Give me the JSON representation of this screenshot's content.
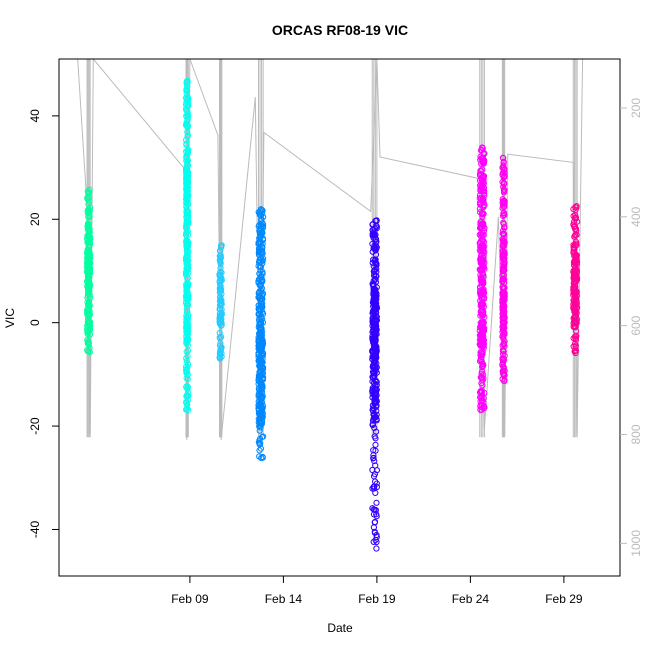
{
  "chart_data": {
    "type": "scatter",
    "title": "ORCAS RF08-19 VIC",
    "xlabel": "Date",
    "ylabel": "VIC",
    "xlim": [
      "2016-02-02",
      "2016-03-03"
    ],
    "ylim": [
      -49,
      51
    ],
    "y_ticks": [
      -40,
      -20,
      0,
      20,
      40
    ],
    "x_ticks": [
      {
        "date": "2016-02-09",
        "label": "Feb 09"
      },
      {
        "date": "2016-02-14",
        "label": "Feb 14"
      },
      {
        "date": "2016-02-19",
        "label": "Feb 19"
      },
      {
        "date": "2016-02-24",
        "label": "Feb 24"
      },
      {
        "date": "2016-02-29",
        "label": "Feb 29"
      }
    ],
    "y2_ticks": [
      200,
      400,
      600,
      800,
      1000
    ],
    "y2lim": [
      110,
      1060
    ],
    "grid": false,
    "series": [
      {
        "color": "#00ff9f",
        "x": [
          "2016-02-03T12:00",
          "2016-02-03T16:00"
        ],
        "y_min": -6,
        "y_max": 26,
        "density": [
          [
            -6,
            -2,
            0.6
          ],
          [
            -2,
            6,
            1
          ],
          [
            6,
            18,
            1.6
          ],
          [
            18,
            26,
            0.8
          ]
        ]
      },
      {
        "color": "#00ffee",
        "x": [
          "2016-02-08T19:00",
          "2016-02-08T22:00"
        ],
        "y_min": -17,
        "y_max": 47,
        "density": [
          [
            -17,
            -5,
            0.5
          ],
          [
            -5,
            10,
            0.9
          ],
          [
            10,
            30,
            1.2
          ],
          [
            30,
            47,
            0.7
          ]
        ]
      },
      {
        "color": "#22ccff",
        "x": [
          "2016-02-10T14:00",
          "2016-02-10T17:00"
        ],
        "y_min": -7,
        "y_max": 15,
        "density": [
          [
            -7,
            0,
            0.6
          ],
          [
            0,
            10,
            1
          ],
          [
            10,
            15,
            0.5
          ]
        ]
      },
      {
        "color": "#0088ff",
        "x": [
          "2016-02-12T16:00",
          "2016-02-12T22:00"
        ],
        "y_min": -27,
        "y_max": 22,
        "density": [
          [
            -27,
            -20,
            0.4
          ],
          [
            -20,
            -5,
            1.6
          ],
          [
            -5,
            5,
            1.5
          ],
          [
            5,
            22,
            1
          ]
        ]
      },
      {
        "color": "#3300ff",
        "x": [
          "2016-02-18T18:00",
          "2016-02-19T00:00"
        ],
        "y_min": -44,
        "y_max": 20,
        "density": [
          [
            -44,
            -20,
            0.3
          ],
          [
            -20,
            -8,
            1.2
          ],
          [
            -8,
            8,
            1.8
          ],
          [
            8,
            20,
            0.8
          ]
        ]
      },
      {
        "color": "#ff00ff",
        "x": [
          "2016-02-24T12:00",
          "2016-02-24T18:00"
        ],
        "y_min": -17,
        "y_max": 34,
        "density": [
          [
            -17,
            -5,
            0.7
          ],
          [
            -5,
            15,
            1.4
          ],
          [
            15,
            34,
            1
          ]
        ]
      },
      {
        "color": "#ff00ee",
        "x": [
          "2016-02-25T17:00",
          "2016-02-25T20:00"
        ],
        "y_min": -12,
        "y_max": 33,
        "density": [
          [
            -12,
            0,
            0.7
          ],
          [
            0,
            15,
            1.2
          ],
          [
            15,
            33,
            0.6
          ]
        ]
      },
      {
        "color": "#ff0099",
        "x": [
          "2016-02-29T12:00",
          "2016-02-29T17:00"
        ],
        "y_min": -6,
        "y_max": 23,
        "density": [
          [
            -6,
            0,
            0.7
          ],
          [
            0,
            15,
            1.4
          ],
          [
            15,
            23,
            0.6
          ]
        ]
      }
    ],
    "pressure_track": {
      "color": "#bbbbbb",
      "y2_points": [
        [
          "2016-02-03T00:00",
          110
        ],
        [
          "2016-02-03T12:00",
          380
        ],
        [
          "2016-02-03T16:00",
          800
        ],
        [
          "2016-02-03T20:00",
          110
        ],
        [
          "2016-02-08T16:00",
          310
        ],
        [
          "2016-02-08T20:00",
          810
        ],
        [
          "2016-02-09T00:00",
          110
        ],
        [
          "2016-02-10T12:00",
          250
        ],
        [
          "2016-02-10T16:00",
          810
        ],
        [
          "2016-02-12T12:00",
          180
        ],
        [
          "2016-02-12T18:00",
          790
        ],
        [
          "2016-02-12T23:00",
          245
        ],
        [
          "2016-02-18T16:00",
          390
        ],
        [
          "2016-02-19T00:00",
          110
        ],
        [
          "2016-02-19T04:00",
          290
        ],
        [
          "2016-02-24T12:00",
          330
        ],
        [
          "2016-02-24T18:00",
          790
        ],
        [
          "2016-02-25T12:00",
          400
        ],
        [
          "2016-02-25T20:00",
          800
        ],
        [
          "2016-02-26T00:00",
          285
        ],
        [
          "2016-02-29T12:00",
          300
        ],
        [
          "2016-02-29T17:00",
          800
        ],
        [
          "2016-03-01T00:00",
          110
        ]
      ]
    }
  }
}
